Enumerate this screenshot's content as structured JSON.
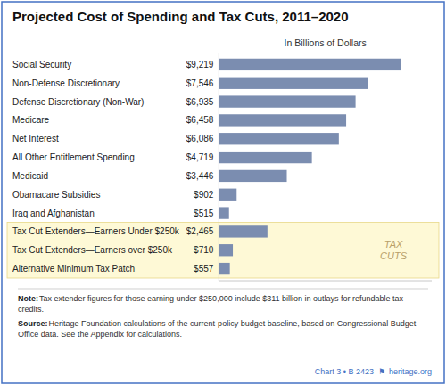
{
  "chart_data": {
    "type": "bar",
    "orientation": "horizontal",
    "title": "Projected Cost of Spending and Tax Cuts, 2011–2020",
    "subtitle": "In Billions of Dollars",
    "categories": [
      "Social Security",
      "Non-Defense Discretionary",
      "Defense Discretionary (Non-War)",
      "Medicare",
      "Net Interest",
      "All Other Entitlement Spending",
      "Medicaid",
      "Obamacare Subsidies",
      "Iraq and Afghanistan",
      "Tax Cut Extenders—Earners Under $250k",
      "Tax Cut Extenders—Earners over $250k",
      "Alternative Minimum Tax Patch"
    ],
    "values": [
      9219,
      7546,
      6935,
      6458,
      6086,
      4719,
      3446,
      902,
      515,
      2465,
      710,
      557
    ],
    "value_labels": [
      "$9,219",
      "$7,546",
      "$6,935",
      "$6,458",
      "$6,086",
      "$4,719",
      "$3,446",
      "$902",
      "$515",
      "$2,465",
      "$710",
      "$557"
    ],
    "data_labels": true,
    "color": "#7b8db0",
    "xlim": [
      0,
      10800
    ],
    "tick_labels": false,
    "annotations": [
      {
        "text": "TAX\nCUTS",
        "categories": [
          "Tax Cut Extenders—Earners Under $250k",
          "Tax Cut Extenders—Earners over $250k",
          "Alternative Minimum Tax Patch"
        ]
      }
    ],
    "note_label": "Note:",
    "note": "Tax extender figures for those earning under $250,000 include $311 billion in outlays for refundable tax credits.",
    "source_label": "Source:",
    "source": "Heritage Foundation calculations of the current-policy budget baseline, based on Congressional Budget Office data. See the Appendix for calculations.",
    "footer": "Chart 3 • B 2423",
    "footer_symbol": "⚑",
    "footer_site": "heritage.org"
  }
}
